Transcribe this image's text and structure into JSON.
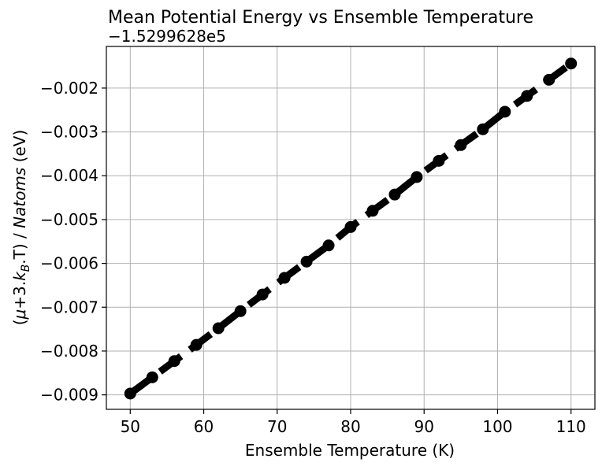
{
  "chart_data": {
    "type": "line",
    "title": "Mean Potential Energy vs Ensemble Temperature",
    "xlabel": "Ensemble Temperature (K)",
    "ylabel_parts": {
      "open": "(",
      "mu": "μ",
      "mid": "+3.",
      "k": "k",
      "sub": "B",
      "dotT": ".T",
      "close": ") / ",
      "natoms": "Natoms",
      "unit": " (eV)"
    },
    "offset_label": "−1.5299628e5",
    "xlim": [
      46.75,
      113.25
    ],
    "ylim": [
      -0.00933,
      -0.00105
    ],
    "xticks": [
      50,
      60,
      70,
      80,
      90,
      100,
      110
    ],
    "xtick_labels": [
      "50",
      "60",
      "70",
      "80",
      "90",
      "100",
      "110"
    ],
    "yticks": [
      -0.009,
      -0.008,
      -0.007,
      -0.006,
      -0.005,
      -0.004,
      -0.003,
      -0.002
    ],
    "ytick_labels": [
      "−0.009",
      "−0.008",
      "−0.007",
      "−0.006",
      "−0.005",
      "−0.004",
      "−0.003",
      "−0.002"
    ],
    "grid": true,
    "line_style": "dashed",
    "marker": "circle",
    "color": "#000000",
    "series": [
      {
        "x": [
          50,
          53,
          56,
          59,
          62,
          65,
          68,
          71,
          74,
          77,
          80,
          83,
          86,
          89,
          92,
          95,
          98,
          101,
          104,
          107,
          110
        ],
        "y": [
          -0.00897,
          -0.0086,
          -0.00823,
          -0.00786,
          -0.00748,
          -0.00709,
          -0.00671,
          -0.00633,
          -0.00596,
          -0.00559,
          -0.00517,
          -0.0048,
          -0.00443,
          -0.00403,
          -0.00366,
          -0.0033,
          -0.00294,
          -0.00254,
          -0.00218,
          -0.00181,
          -0.00144
        ]
      }
    ]
  }
}
